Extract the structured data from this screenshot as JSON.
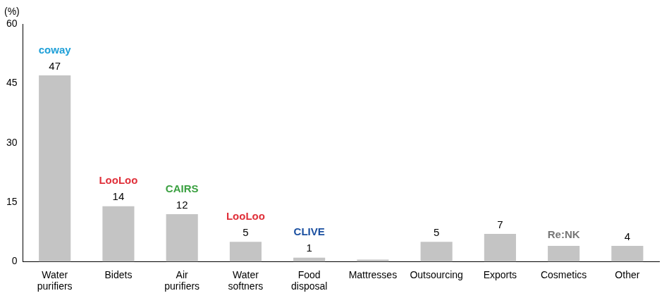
{
  "chart_data": {
    "type": "bar",
    "y_label": "(%)",
    "categories": [
      "Water purifiers",
      "Bidets",
      "Air purifiers",
      "Water softners",
      "Food disposal",
      "Mattresses",
      "Outsourcing",
      "Exports",
      "Cosmetics",
      "Other"
    ],
    "values": [
      47,
      14,
      12,
      5,
      1,
      0.5,
      5,
      7,
      4,
      4
    ],
    "value_labels": [
      "47",
      "14",
      "12",
      "5",
      "1",
      null,
      "5",
      "7",
      null,
      "4"
    ],
    "data_labels": true,
    "color": "#c4c4c4",
    "ylim": [
      0,
      60
    ],
    "yticks": [
      0,
      15,
      30,
      45,
      60
    ],
    "grid": false,
    "annotations": [
      {
        "category": "Water purifiers",
        "text": "coway",
        "color": "#1fa0d8"
      },
      {
        "category": "Bidets",
        "text": "LooLoo",
        "color": "#e0303a"
      },
      {
        "category": "Air purifiers",
        "text": "CAIRS",
        "color": "#3aa040"
      },
      {
        "category": "Water softners",
        "text": "LooLoo",
        "color": "#e0303a"
      },
      {
        "category": "Food disposal",
        "text": "CLIVE",
        "color": "#1a4fa0"
      },
      {
        "category": "Cosmetics",
        "text": "Re:NK",
        "color": "#777777"
      }
    ]
  }
}
